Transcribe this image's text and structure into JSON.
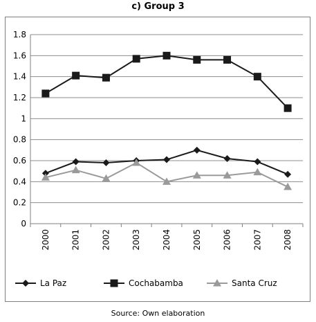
{
  "chart_data": {
    "type": "line",
    "title": "c) Group 3",
    "x": [
      "2000",
      "2001",
      "2002",
      "2003",
      "2004",
      "2005",
      "2006",
      "2007",
      "2008"
    ],
    "series": [
      {
        "name": "La Paz",
        "values": [
          0.48,
          0.59,
          0.58,
          0.6,
          0.61,
          0.7,
          0.62,
          0.59,
          0.47
        ],
        "color": "#1a1a1a",
        "marker": "diamond"
      },
      {
        "name": "Cochabamba",
        "values": [
          1.24,
          1.41,
          1.39,
          1.57,
          1.6,
          1.56,
          1.56,
          1.4,
          1.1
        ],
        "color": "#1a1a1a",
        "marker": "square"
      },
      {
        "name": "Santa Cruz",
        "values": [
          0.44,
          0.51,
          0.43,
          0.58,
          0.4,
          0.46,
          0.46,
          0.49,
          0.35
        ],
        "color": "#9a9a9a",
        "marker": "triangle"
      }
    ],
    "yticks": [
      "0",
      "0.2",
      "0.4",
      "0.6",
      "0.8",
      "1",
      "1.2",
      "1.4",
      "1.6",
      "1.8"
    ],
    "ylim": [
      0,
      1.8
    ],
    "grid": "horizontal",
    "legend": "bottom",
    "source": "Source: Own elaboration"
  }
}
